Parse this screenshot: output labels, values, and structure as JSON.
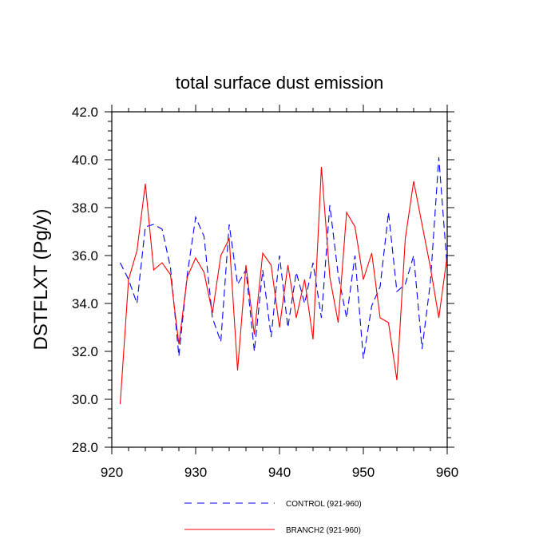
{
  "chart_data": {
    "type": "line",
    "title": "total surface dust emission",
    "xlabel": "",
    "ylabel": "DSTFLXT  (Pg/y)",
    "xlim": [
      920,
      960
    ],
    "ylim": [
      28,
      42
    ],
    "x_ticks": [
      920,
      930,
      940,
      950,
      960
    ],
    "x_tick_labels": [
      "920",
      "930",
      "940",
      "950",
      "960"
    ],
    "y_ticks": [
      28,
      30,
      32,
      34,
      36,
      38,
      40,
      42
    ],
    "y_tick_labels": [
      "28.0",
      "30.0",
      "32.0",
      "34.0",
      "36.0",
      "38.0",
      "40.0",
      "42.0"
    ],
    "grid": false,
    "legend_position": "bottom",
    "x": [
      921,
      922,
      923,
      924,
      925,
      926,
      927,
      928,
      929,
      930,
      931,
      932,
      933,
      934,
      935,
      936,
      937,
      938,
      939,
      940,
      941,
      942,
      943,
      944,
      945,
      946,
      947,
      948,
      949,
      950,
      951,
      952,
      953,
      954,
      955,
      956,
      957,
      958,
      959,
      960
    ],
    "series": [
      {
        "name": "CONTROL (921-960)",
        "color": "#0000ff",
        "dash": "dashed",
        "values": [
          35.7,
          35.0,
          34.0,
          37.2,
          37.3,
          37.1,
          35.5,
          31.8,
          35.2,
          37.6,
          36.8,
          33.4,
          32.4,
          37.3,
          34.8,
          35.4,
          32.0,
          35.4,
          32.6,
          36.0,
          33.0,
          35.3,
          34.0,
          35.7,
          33.4,
          38.1,
          35.2,
          33.4,
          36.0,
          31.7,
          33.9,
          34.7,
          37.8,
          34.5,
          34.8,
          36.0,
          32.1,
          34.9,
          40.1,
          35.5
        ]
      },
      {
        "name": "BRANCH2 (921-960)",
        "color": "#ff0000",
        "dash": "solid",
        "values": [
          29.8,
          35.0,
          36.2,
          39.0,
          35.4,
          35.7,
          35.2,
          32.3,
          35.1,
          35.9,
          35.3,
          33.6,
          36.0,
          36.7,
          31.2,
          35.6,
          32.7,
          36.1,
          35.6,
          33.0,
          35.6,
          33.4,
          35.0,
          32.5,
          39.7,
          35.1,
          33.2,
          37.8,
          37.2,
          35.0,
          36.1,
          33.4,
          33.2,
          30.8,
          36.7,
          39.1,
          37.3,
          35.5,
          33.4,
          36.0
        ]
      }
    ]
  }
}
